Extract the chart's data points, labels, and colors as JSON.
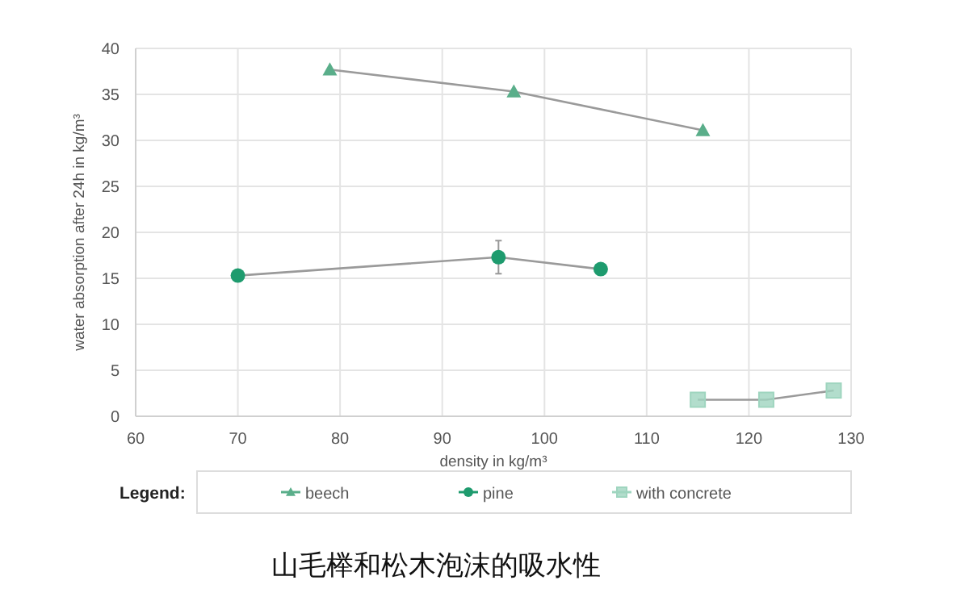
{
  "chart_data": {
    "type": "line",
    "title": "山毛榉和松木泡沫的吸水性",
    "xlabel": "density in kg/m³",
    "ylabel": "water absorption after 24h in kg/m³",
    "legend_title": "Legend:",
    "legend": "bottom",
    "grid": true,
    "xlim": [
      60,
      130
    ],
    "xticks": [
      60,
      70,
      80,
      90,
      100,
      110,
      120,
      130
    ],
    "ylim": [
      0,
      40
    ],
    "yticks": [
      0,
      5,
      10,
      15,
      20,
      25,
      30,
      35,
      40
    ],
    "series": [
      {
        "name": "beech",
        "color": "#5aae8a",
        "marker": "triangle",
        "x": [
          79,
          97,
          115.5
        ],
        "values": [
          37.7,
          35.3,
          31.1
        ]
      },
      {
        "name": "pine",
        "color": "#1e9b6e",
        "marker": "circle",
        "x": [
          70,
          95.5,
          105.5
        ],
        "values": [
          15.3,
          17.3,
          16.0
        ],
        "errors": [
          null,
          1.8,
          null
        ]
      },
      {
        "name": "with concrete",
        "color": "#9fd5bf",
        "marker": "square",
        "x": [
          115,
          121.7,
          128.3
        ],
        "values": [
          1.8,
          1.8,
          2.8
        ]
      }
    ]
  }
}
